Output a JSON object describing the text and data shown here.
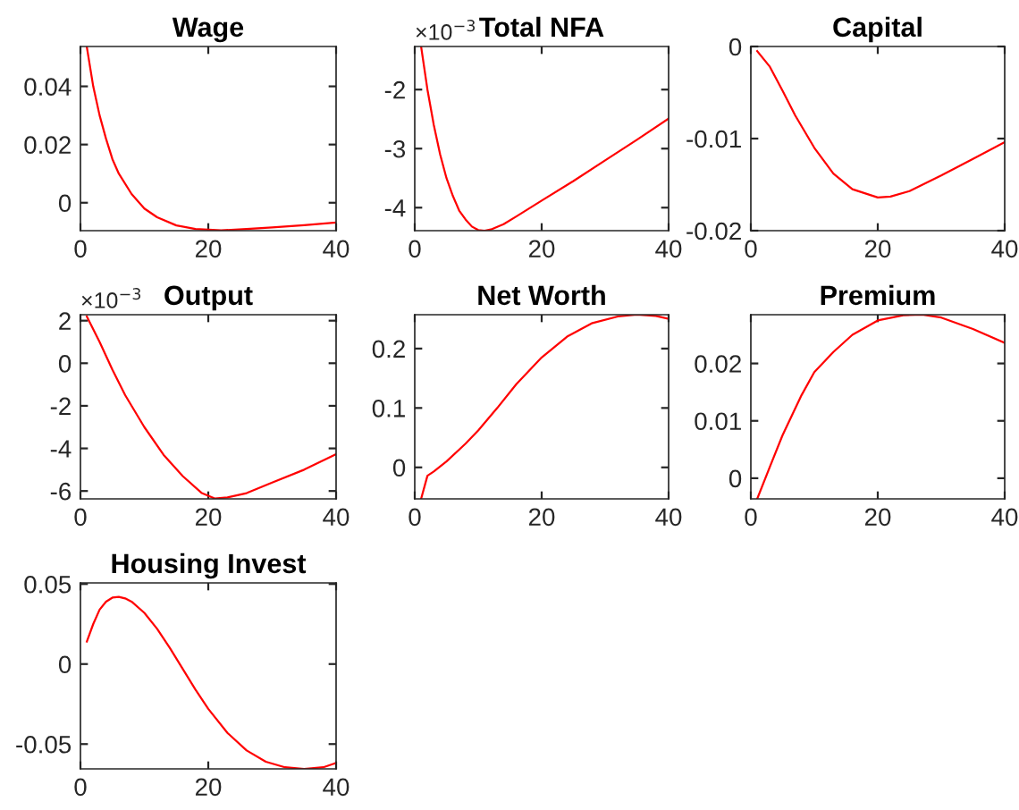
{
  "chart_data": [
    {
      "type": "line",
      "title": "Wage",
      "xlim": [
        0,
        40
      ],
      "xticks": [
        0,
        20,
        40
      ],
      "ylim": [
        -0.0096,
        0.0537
      ],
      "yticks": [
        0,
        0.02,
        0.04
      ],
      "series": [
        {
          "color": "#ff0000",
          "x": [
            1,
            2,
            3,
            4,
            5,
            6,
            8,
            10,
            12,
            15,
            18,
            22,
            26,
            30,
            35,
            40
          ],
          "values": [
            0.0535,
            0.04,
            0.03,
            0.022,
            0.015,
            0.01,
            0.003,
            -0.002,
            -0.005,
            -0.0078,
            -0.009,
            -0.0095,
            -0.009,
            -0.0085,
            -0.0077,
            -0.0068
          ]
        }
      ]
    },
    {
      "type": "line",
      "title": "Total NFA",
      "annotations": [
        "×10$^{−3}$"
      ],
      "xlim": [
        0,
        40
      ],
      "xticks": [
        0,
        20,
        40
      ],
      "ylim": [
        -4.39,
        -1.27
      ],
      "yticks": [
        -4,
        -3,
        -2
      ],
      "series": [
        {
          "color": "#ff0000",
          "x": [
            1,
            2,
            3,
            4,
            5,
            6,
            7,
            8,
            9,
            10,
            11,
            12,
            14,
            16,
            20,
            25,
            30,
            35,
            40
          ],
          "values": [
            -1.27,
            -2.0,
            -2.6,
            -3.1,
            -3.5,
            -3.8,
            -4.05,
            -4.2,
            -4.32,
            -4.38,
            -4.39,
            -4.37,
            -4.28,
            -4.15,
            -3.88,
            -3.55,
            -3.2,
            -2.85,
            -2.49
          ]
        }
      ]
    },
    {
      "type": "line",
      "title": "Capital",
      "xlim": [
        0,
        40
      ],
      "xticks": [
        0,
        20,
        40
      ],
      "ylim": [
        -0.02,
        0
      ],
      "yticks": [
        -0.02,
        -0.01,
        0
      ],
      "series": [
        {
          "color": "#ff0000",
          "x": [
            1,
            3,
            5,
            7,
            10,
            13,
            16,
            20,
            22,
            25,
            30,
            35,
            40
          ],
          "values": [
            -0.0005,
            -0.0022,
            -0.0048,
            -0.0075,
            -0.011,
            -0.0138,
            -0.0155,
            -0.0164,
            -0.0163,
            -0.0157,
            -0.014,
            -0.0122,
            -0.0104
          ]
        }
      ]
    },
    {
      "type": "line",
      "title": "Output",
      "annotations": [
        "×10$^{−3}$"
      ],
      "xlim": [
        0,
        40
      ],
      "xticks": [
        0,
        20,
        40
      ],
      "ylim": [
        -6.37,
        2.28
      ],
      "yticks": [
        -6,
        -4,
        -2,
        0,
        2
      ],
      "series": [
        {
          "color": "#ff0000",
          "x": [
            1,
            3,
            5,
            7,
            10,
            13,
            16,
            19,
            21,
            23,
            26,
            30,
            35,
            40
          ],
          "values": [
            2.2,
            1.0,
            -0.3,
            -1.5,
            -3.0,
            -4.3,
            -5.3,
            -6.1,
            -6.35,
            -6.3,
            -6.1,
            -5.6,
            -5.0,
            -4.27
          ]
        }
      ]
    },
    {
      "type": "line",
      "title": "Net Worth",
      "xlim": [
        0,
        40
      ],
      "xticks": [
        0,
        20,
        40
      ],
      "ylim": [
        -0.053,
        0.257
      ],
      "yticks": [
        0,
        0.1,
        0.2
      ],
      "series": [
        {
          "color": "#ff0000",
          "x": [
            1,
            2,
            3,
            5,
            8,
            10,
            13,
            16,
            20,
            24,
            28,
            32,
            35,
            38,
            40
          ],
          "values": [
            -0.053,
            -0.014,
            -0.007,
            0.01,
            0.04,
            0.062,
            0.1,
            0.14,
            0.185,
            0.22,
            0.243,
            0.254,
            0.257,
            0.255,
            0.25
          ]
        }
      ]
    },
    {
      "type": "line",
      "title": "Premium",
      "xlim": [
        0,
        40
      ],
      "xticks": [
        0,
        20,
        40
      ],
      "ylim": [
        -0.0036,
        0.0285
      ],
      "yticks": [
        0,
        0.01,
        0.02
      ],
      "series": [
        {
          "color": "#ff0000",
          "x": [
            1,
            3,
            5,
            8,
            10,
            13,
            16,
            20,
            24,
            27,
            30,
            35,
            40
          ],
          "values": [
            -0.0036,
            0.002,
            0.0075,
            0.0145,
            0.0185,
            0.022,
            0.025,
            0.0275,
            0.0284,
            0.0285,
            0.028,
            0.026,
            0.0236
          ]
        }
      ]
    },
    {
      "type": "line",
      "title": "Housing Invest",
      "xlim": [
        0,
        40
      ],
      "xticks": [
        0,
        20,
        40
      ],
      "ylim": [
        -0.0655,
        0.0507
      ],
      "yticks": [
        -0.05,
        0,
        0.05
      ],
      "series": [
        {
          "color": "#ff0000",
          "x": [
            1,
            2,
            3,
            4,
            5,
            6,
            7,
            8,
            10,
            12,
            14,
            16,
            18,
            20,
            23,
            26,
            29,
            32,
            35,
            38,
            40
          ],
          "values": [
            0.014,
            0.025,
            0.034,
            0.039,
            0.0415,
            0.042,
            0.041,
            0.039,
            0.032,
            0.022,
            0.01,
            -0.003,
            -0.016,
            -0.028,
            -0.043,
            -0.054,
            -0.061,
            -0.0645,
            -0.0655,
            -0.0645,
            -0.0618
          ]
        }
      ]
    }
  ]
}
